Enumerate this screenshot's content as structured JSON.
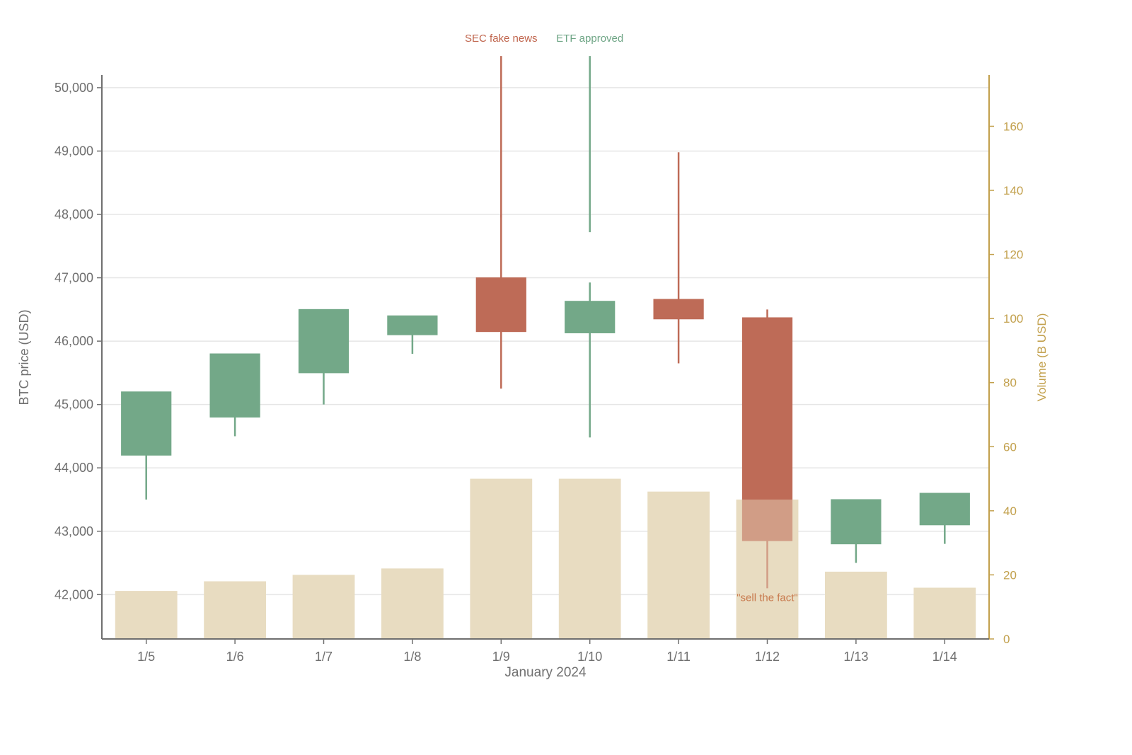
{
  "chart_data": {
    "type": "candlestick",
    "xlabel": "January 2024",
    "ylabel": "BTC price (USD)",
    "y2label": "Volume (B USD)",
    "ylim": [
      41300,
      50200
    ],
    "y2lim": [
      0,
      176
    ],
    "y_ticks": [
      42000,
      43000,
      44000,
      45000,
      46000,
      47000,
      48000,
      49000,
      50000
    ],
    "y_tick_labels": [
      "42,000",
      "43,000",
      "44,000",
      "45,000",
      "46,000",
      "47,000",
      "48,000",
      "49,000",
      "50,000"
    ],
    "y2_ticks": [
      0,
      20,
      40,
      60,
      80,
      100,
      120,
      140,
      160
    ],
    "y2_tick_labels": [
      "0",
      "20",
      "40",
      "60",
      "80",
      "100",
      "120",
      "140",
      "160"
    ],
    "grid": true,
    "categories": [
      "1/5",
      "1/6",
      "1/7",
      "1/8",
      "1/9",
      "1/10",
      "1/11",
      "1/12",
      "1/13",
      "1/14"
    ],
    "candles": [
      {
        "date": "1/5",
        "open": 44200,
        "high": 45200,
        "low": 43500,
        "close": 45200
      },
      {
        "date": "1/6",
        "open": 44800,
        "high": 45800,
        "low": 44500,
        "close": 45800
      },
      {
        "date": "1/7",
        "open": 45500,
        "high": 46500,
        "low": 45000,
        "close": 46500
      },
      {
        "date": "1/8",
        "open": 46100,
        "high": 46400,
        "low": 45800,
        "close": 46400
      },
      {
        "date": "1/9",
        "open": 47000,
        "high": 50500,
        "low": 45250,
        "close": 46150,
        "high_break": [
          47950,
          47950
        ]
      },
      {
        "date": "1/10",
        "open": 46130,
        "high": 50500,
        "low": 44480,
        "close": 46630,
        "high_break": [
          46880,
          47720
        ]
      },
      {
        "date": "1/11",
        "open": 46660,
        "high": 48980,
        "low": 45650,
        "close": 46350
      },
      {
        "date": "1/12",
        "open": 46370,
        "high": 46500,
        "low": 42100,
        "close": 42850
      },
      {
        "date": "1/13",
        "open": 42800,
        "high": 43500,
        "low": 42500,
        "close": 43500
      },
      {
        "date": "1/14",
        "open": 43100,
        "high": 43600,
        "low": 42800,
        "close": 43600
      }
    ],
    "volume": [
      15,
      18,
      20,
      22,
      50,
      50,
      46,
      43.5,
      21,
      16
    ],
    "annotations": [
      {
        "text": "SEC fake news",
        "date": "1/9",
        "position": "top",
        "color": "#c0654d"
      },
      {
        "text": "ETF approved",
        "date": "1/10",
        "position": "top",
        "color": "#6ea585"
      },
      {
        "text": "\"sell the fact\"",
        "date": "1/12",
        "position": "below-low",
        "color": "#c87a4e"
      }
    ],
    "colors": {
      "up": "#73a888",
      "down": "#be6b57",
      "volume": "#e8dcc1",
      "left_axis": "#6f6f6f",
      "right_axis": "#c2a04c",
      "grid": "#e6e6e6"
    }
  }
}
